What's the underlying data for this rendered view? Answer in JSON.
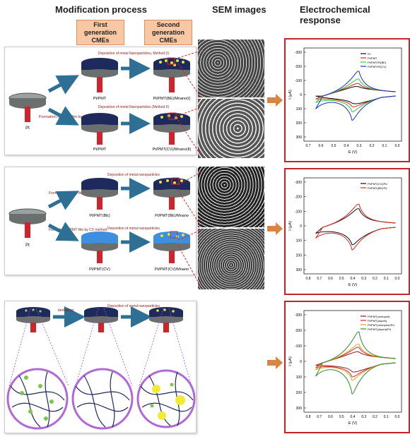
{
  "headers": {
    "modification": "Modification process",
    "sem": "SEM images",
    "electro": "Electrochemical response"
  },
  "gen_boxes": {
    "first": "First generation CMEs",
    "second": "Second generation CMEs"
  },
  "panel1": {
    "pt": "Pt",
    "formation": "Formation of PMT film by BE method",
    "pt_pmt_a": "Pt/PMT",
    "pt_pmt_b": "Pt/PMT",
    "dep1": "Deposition of metal Nanoparticles, Method (I)",
    "dep2": "Deposition of metal Nanoparticles (Method II)",
    "out1": "Pt/PMT(BE)/Mnano(I)",
    "out2": "Pt/PMT(CV)/Mnano(II)"
  },
  "panel2": {
    "pt": "Pt",
    "form_be": "Formation of PMT film by BE method",
    "form_cv": "Formation of PMT film by CV method",
    "pt_be": "Pt/PMT(BE)",
    "pt_cv": "Pt/PMT(CV)",
    "dep1": "Deposition of metal nanoparticles",
    "dep2": "Deposition of metal nanoparticles",
    "out1": "Pt/PMT(BE)/Mnano",
    "out2": "Pt/PMT(CV)/Mnano"
  },
  "panel3": {
    "doping": "dedoping",
    "dep": "Deposition of metal nanoparticles"
  },
  "colors": {
    "accent": "#c0262c",
    "arrow": "#2e6f95",
    "orange_arrow": "#d9843f",
    "film_dark": "#1f2a5c",
    "film_light": "#3d8fe0",
    "wire": "#d1232a",
    "np": "#e8e23a"
  },
  "chart_data": [
    {
      "type": "line",
      "xlabel": "E (V)",
      "ylabel": "I (µA)",
      "xlim": [
        0.8,
        0.0
      ],
      "xticks": [
        "0.7",
        "0.6",
        "0.5",
        "0.4",
        "0.3",
        "0.2",
        "0.1",
        "0.0"
      ],
      "yticks": [
        "-300",
        "-200",
        "-100",
        "0",
        "100",
        "200",
        "300"
      ],
      "ylim": [
        -350,
        350
      ],
      "legend": [
        "Pt",
        "Pt/PMT",
        "Pt/PMT/Pt(BE)",
        "Pt/PMT/Pt(CV)"
      ],
      "series": [
        {
          "name": "Pt",
          "color": "#111111"
        },
        {
          "name": "Pt/PMT",
          "color": "#e0261f"
        },
        {
          "name": "Pt/PMT/Pt(BE)",
          "color": "#2bd12b"
        },
        {
          "name": "Pt/PMT/Pt(CV)",
          "color": "#1f2fd1"
        }
      ]
    },
    {
      "type": "line",
      "xlabel": "E (V)",
      "ylabel": "I (µA)",
      "xlim": [
        0.8,
        0.0
      ],
      "xticks": [
        "0.8",
        "0.7",
        "0.6",
        "0.5",
        "0.4",
        "0.3",
        "0.2",
        "0.1",
        "0.0"
      ],
      "yticks": [
        "-300",
        "-200",
        "-100",
        "0",
        "100",
        "200",
        "300"
      ],
      "ylim": [
        -350,
        350
      ],
      "legend": [
        "Pt/PMT(CV)/Pd",
        "Pt/PMT(BE)/Pd"
      ],
      "series": [
        {
          "name": "Pt/PMT(CV)/Pd",
          "color": "#111111"
        },
        {
          "name": "Pt/PMT(BE)/Pd",
          "color": "#e0261f"
        }
      ]
    },
    {
      "type": "line",
      "xlabel": "E (V)",
      "ylabel": "I (µA)",
      "xlim": [
        0.8,
        0.0
      ],
      "xticks": [
        "0.8",
        "0.7",
        "0.6",
        "0.5",
        "0.4",
        "0.3",
        "0.2",
        "0.1",
        "0.0"
      ],
      "yticks": [
        "-300",
        "-200",
        "-100",
        "0",
        "100",
        "200",
        "300"
      ],
      "ylim": [
        -350,
        350
      ],
      "legend": [
        "Pt/PMT(undoped)",
        "Pt/PMT(dope6)",
        "Pt/PMT(undoped)/Pd",
        "Pt/PMT(doped)/Pd"
      ],
      "series": [
        {
          "name": "Pt/PMT(undoped)",
          "color": "#8b1a1a"
        },
        {
          "name": "Pt/PMT(dope6)",
          "color": "#e0261f"
        },
        {
          "name": "Pt/PMT(undoped)/Pd",
          "color": "#e0a020"
        },
        {
          "name": "Pt/PMT(doped)/Pd",
          "color": "#2f8f2f"
        }
      ]
    }
  ]
}
